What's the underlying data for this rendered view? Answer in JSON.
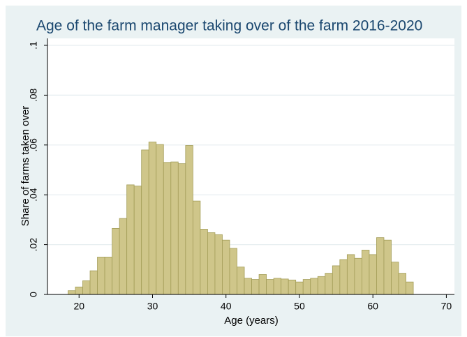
{
  "chart_data": {
    "type": "histogram",
    "title": "Age of the farm manager taking over of the farm 2016-2020",
    "x_label": "Age (years)",
    "y_label": "Share of farms taken over",
    "bins": [
      18.5,
      19.5,
      20.5,
      21.5,
      22.5,
      23.5,
      24.5,
      25.5,
      26.5,
      27.5,
      28.5,
      29.5,
      30.5,
      31.5,
      32.5,
      33.5,
      34.5,
      35.5,
      36.5,
      37.5,
      38.5,
      39.5,
      40.5,
      41.5,
      42.5,
      43.5,
      44.5,
      45.5,
      46.5,
      47.5,
      48.5,
      49.5,
      50.5,
      51.5,
      52.5,
      53.5,
      54.5,
      55.5,
      56.5,
      57.5,
      58.5,
      59.5,
      60.5,
      61.5,
      62.5,
      63.5,
      64.5,
      65.5
    ],
    "values": [
      0.0015,
      0.003,
      0.0055,
      0.0095,
      0.015,
      0.015,
      0.0265,
      0.0305,
      0.044,
      0.0435,
      0.058,
      0.0612,
      0.0602,
      0.053,
      0.0532,
      0.0525,
      0.0598,
      0.0375,
      0.0262,
      0.0248,
      0.024,
      0.0218,
      0.0185,
      0.011,
      0.0065,
      0.006,
      0.008,
      0.006,
      0.0065,
      0.0062,
      0.0058,
      0.005,
      0.006,
      0.0065,
      0.0072,
      0.0085,
      0.0115,
      0.014,
      0.016,
      0.0145,
      0.0178,
      0.016,
      0.0228,
      0.0218,
      0.013,
      0.0085,
      0.005
    ],
    "color": "#cfc68a",
    "edge_color": "#a39d58",
    "xlim": [
      15.7,
      71.1
    ],
    "ylim": [
      0,
      0.1028
    ],
    "xticks": [
      20,
      30,
      40,
      50,
      60,
      70
    ],
    "yticks": [
      0,
      {
        "value": 0.02,
        "label": ".02"
      },
      {
        "value": 0.04,
        "label": ".04"
      },
      {
        "value": 0.06,
        "label": ".06"
      },
      {
        "value": 0.08,
        "label": ".08"
      },
      {
        "value": 0.1,
        "label": ".1"
      }
    ],
    "grid": true
  }
}
